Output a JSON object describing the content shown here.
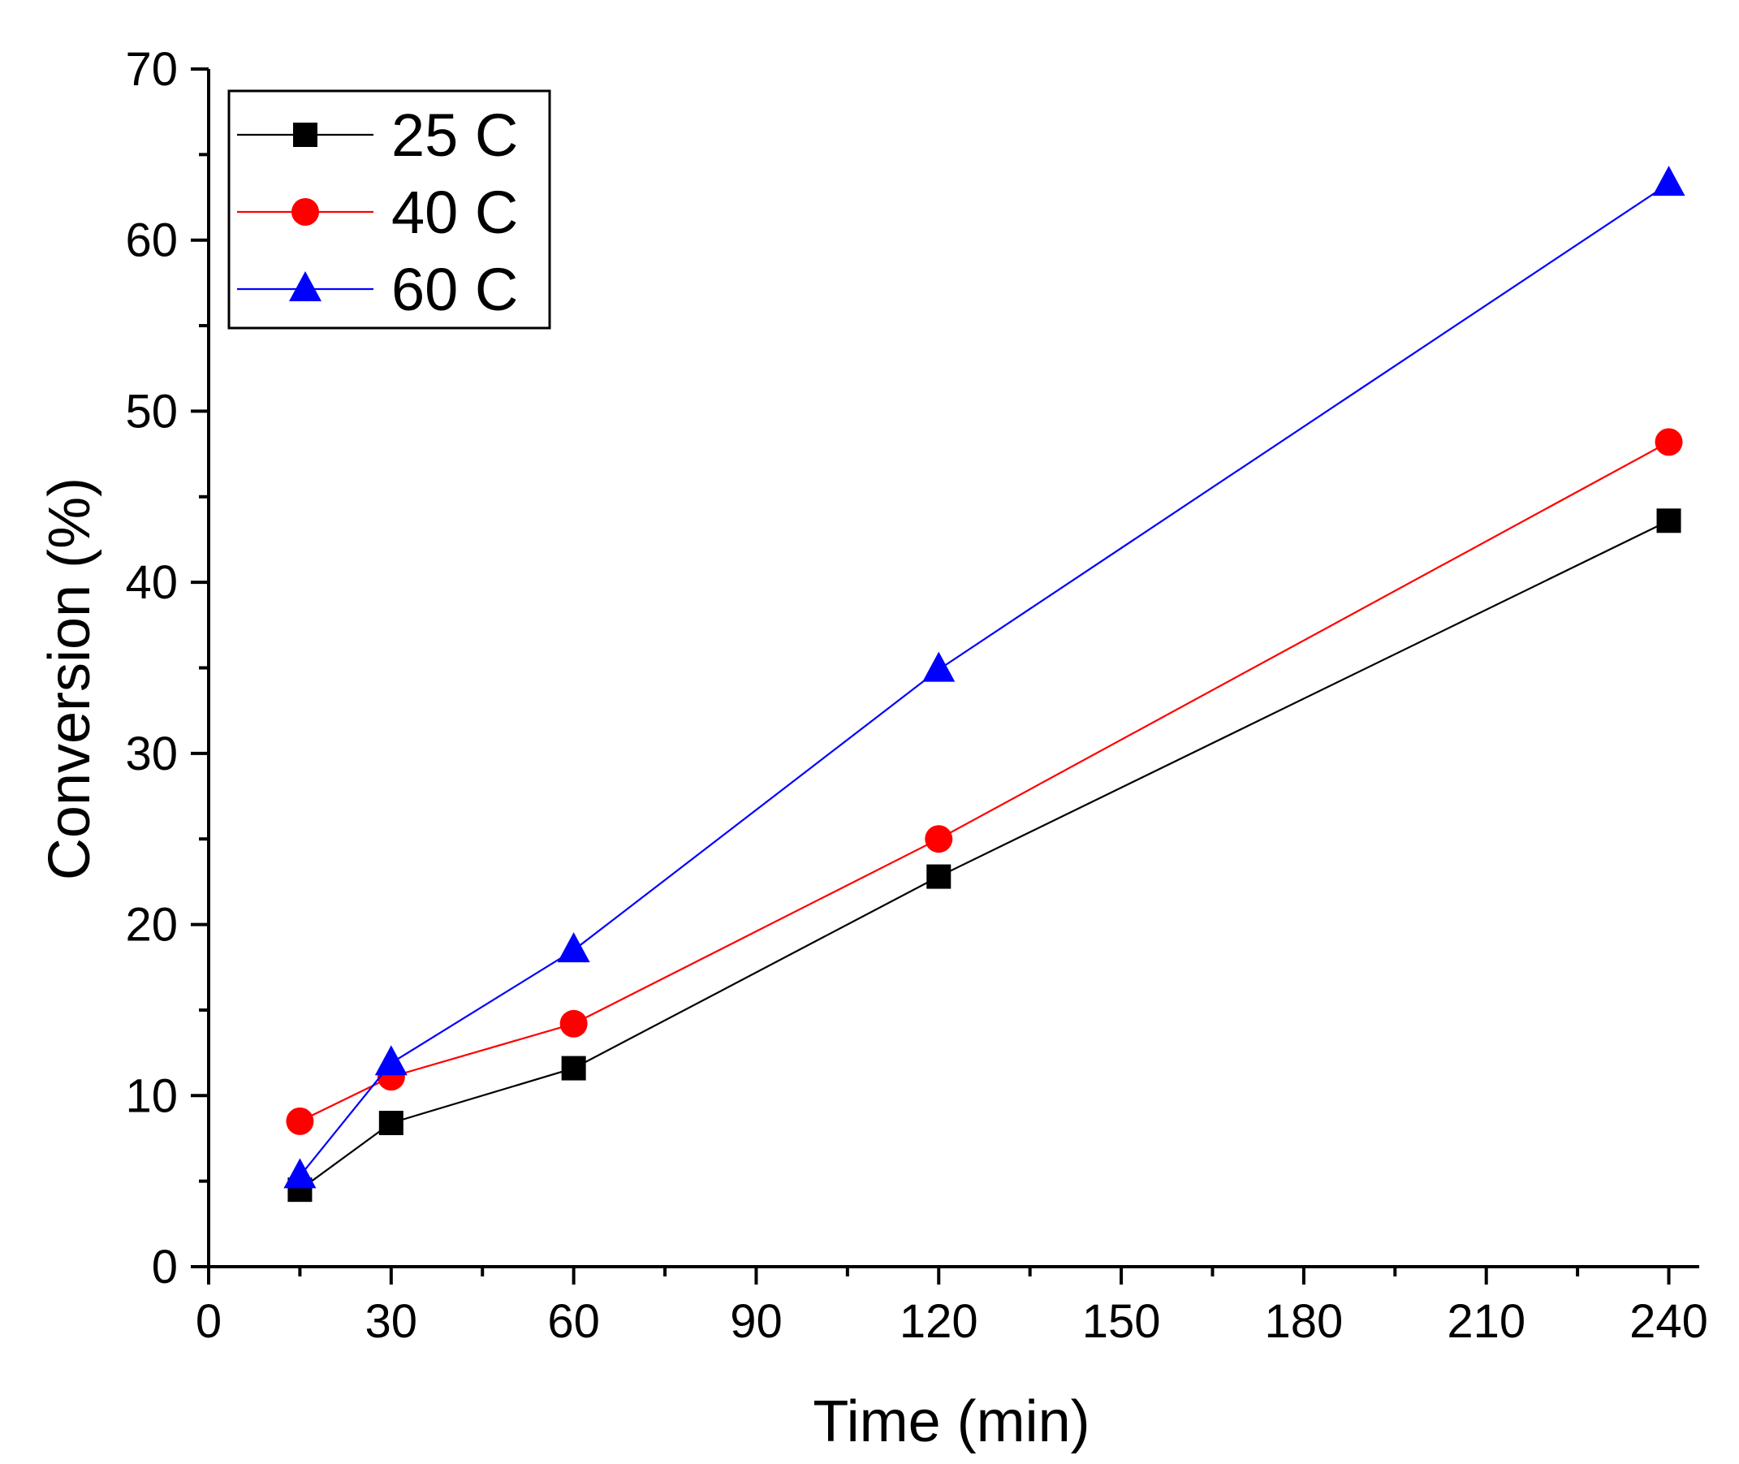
{
  "chart_data": {
    "type": "line",
    "title": "",
    "xlabel": "Time (min)",
    "ylabel": "Conversion (%)",
    "xlim": [
      0,
      245
    ],
    "ylim": [
      0,
      70
    ],
    "xticks": [
      0,
      30,
      60,
      90,
      120,
      150,
      180,
      210,
      240
    ],
    "yticks": [
      0,
      10,
      20,
      30,
      40,
      50,
      60,
      70
    ],
    "xtick_labels": [
      "0",
      "30",
      "60",
      "90",
      "120",
      "150",
      "180",
      "210",
      "240"
    ],
    "ytick_labels": [
      "0",
      "10",
      "20",
      "30",
      "40",
      "50",
      "60",
      "70"
    ],
    "grid": false,
    "legend_position": "top-left",
    "x": [
      15,
      30,
      60,
      120,
      240
    ],
    "series": [
      {
        "name": "25 C",
        "color": "#000000",
        "marker": "square",
        "values": [
          4.5,
          8.4,
          11.6,
          22.8,
          43.6
        ]
      },
      {
        "name": "40 C",
        "color": "#ff0000",
        "marker": "circle",
        "values": [
          8.5,
          11.1,
          14.2,
          25.0,
          48.2
        ]
      },
      {
        "name": "60 C",
        "color": "#0000ff",
        "marker": "triangle",
        "values": [
          5.3,
          11.9,
          18.5,
          34.9,
          63.3
        ]
      }
    ]
  }
}
